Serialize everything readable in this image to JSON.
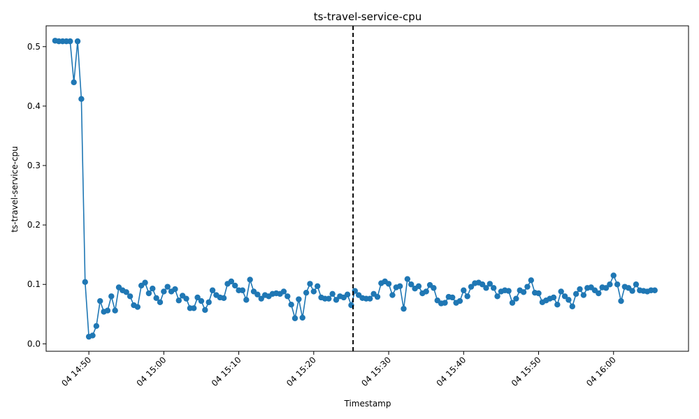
{
  "chart_data": {
    "type": "line",
    "title": "ts-travel-service-cpu",
    "xlabel": "Timestamp",
    "ylabel": "ts-travel-service-cpu",
    "x_start": "04 14:45:30",
    "x_step_seconds": 30,
    "xlim_minutes_from_1440": [
      4.3,
      30.0
    ],
    "ylim": [
      -0.0125,
      0.535
    ],
    "x_ticks": [
      {
        "label": "04 14:50",
        "minute": 890
      },
      {
        "label": "04 15:00",
        "minute": 900
      },
      {
        "label": "04 15:10",
        "minute": 910
      },
      {
        "label": "04 15:20",
        "minute": 920
      },
      {
        "label": "04 15:30",
        "minute": 930
      },
      {
        "label": "04 15:40",
        "minute": 940
      },
      {
        "label": "04 15:50",
        "minute": 950
      },
      {
        "label": "04 16:00",
        "minute": 960
      }
    ],
    "y_ticks": [
      0.0,
      0.1,
      0.2,
      0.3,
      0.4,
      0.5
    ],
    "y_tick_labels": [
      "0.0",
      "0.1",
      "0.2",
      "0.3",
      "0.4",
      "0.5"
    ],
    "marker_time": "04 15:25:15",
    "marker_style": "dashed vertical line",
    "grid": false,
    "series": [
      {
        "color": "#1f77b4",
        "values": [
          0.51,
          0.509,
          0.509,
          0.509,
          0.509,
          0.44,
          0.509,
          0.412,
          0.104,
          0.012,
          0.014,
          0.03,
          0.072,
          0.054,
          0.056,
          0.08,
          0.056,
          0.095,
          0.09,
          0.087,
          0.08,
          0.065,
          0.062,
          0.098,
          0.103,
          0.085,
          0.093,
          0.077,
          0.07,
          0.088,
          0.096,
          0.088,
          0.092,
          0.073,
          0.081,
          0.076,
          0.06,
          0.06,
          0.078,
          0.072,
          0.057,
          0.07,
          0.09,
          0.082,
          0.078,
          0.077,
          0.101,
          0.105,
          0.098,
          0.09,
          0.09,
          0.074,
          0.108,
          0.088,
          0.083,
          0.076,
          0.082,
          0.08,
          0.084,
          0.085,
          0.084,
          0.088,
          0.08,
          0.066,
          0.043,
          0.075,
          0.044,
          0.086,
          0.101,
          0.088,
          0.097,
          0.078,
          0.076,
          0.076,
          0.084,
          0.074,
          0.08,
          0.078,
          0.083,
          0.065,
          0.089,
          0.082,
          0.077,
          0.076,
          0.076,
          0.084,
          0.079,
          0.102,
          0.105,
          0.101,
          0.082,
          0.095,
          0.097,
          0.059,
          0.109,
          0.1,
          0.093,
          0.097,
          0.085,
          0.088,
          0.099,
          0.094,
          0.073,
          0.068,
          0.069,
          0.079,
          0.078,
          0.069,
          0.072,
          0.09,
          0.08,
          0.096,
          0.102,
          0.103,
          0.1,
          0.094,
          0.101,
          0.094,
          0.08,
          0.088,
          0.09,
          0.089,
          0.069,
          0.076,
          0.09,
          0.087,
          0.096,
          0.107,
          0.086,
          0.085,
          0.07,
          0.073,
          0.076,
          0.078,
          0.066,
          0.088,
          0.08,
          0.074,
          0.063,
          0.084,
          0.092,
          0.082,
          0.094,
          0.095,
          0.09,
          0.085,
          0.095,
          0.094,
          0.1,
          0.115,
          0.1,
          0.072,
          0.096,
          0.094,
          0.089,
          0.1,
          0.09,
          0.089,
          0.088,
          0.09,
          0.09
        ]
      }
    ]
  }
}
